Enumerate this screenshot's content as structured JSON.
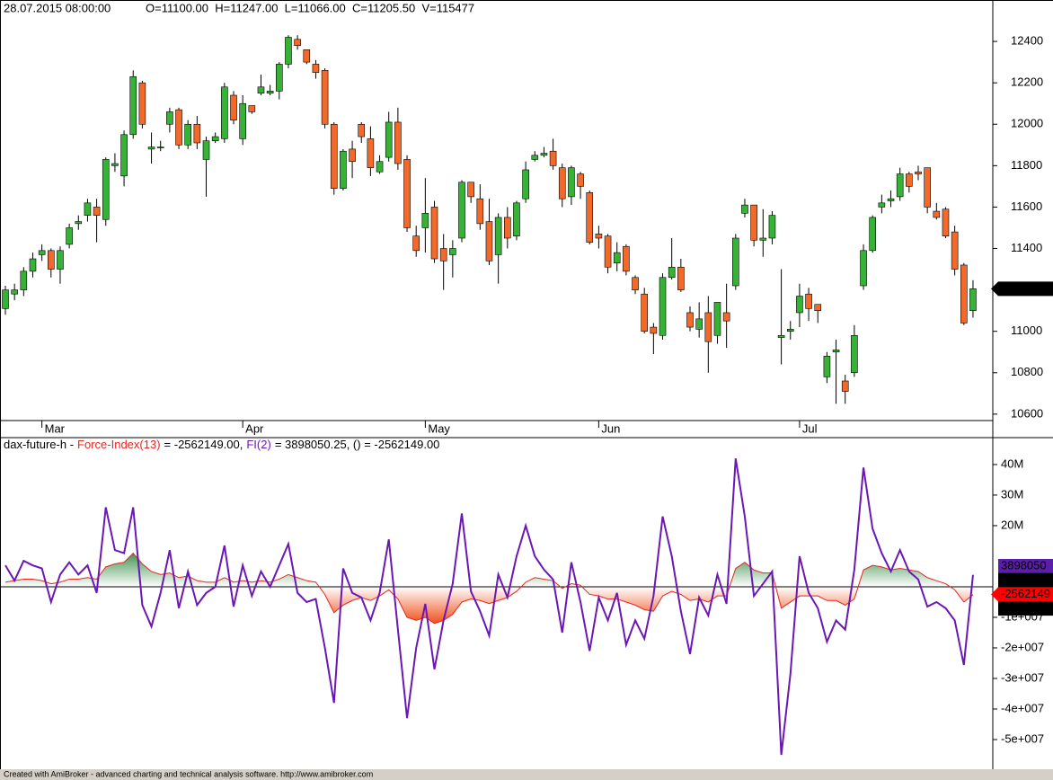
{
  "chart_data": [
    {
      "type": "candlestick",
      "info_date": "28.07.2015 08:00:00",
      "info_quote": "O=11100.00  H=11247.00  L=11066.00  C=11205.50  V=115477",
      "categories": [
        null,
        null,
        null,
        null,
        "Mar",
        null,
        null,
        null,
        null,
        null,
        null,
        null,
        null,
        null,
        null,
        null,
        null,
        null,
        null,
        null,
        null,
        null,
        null,
        null,
        null,
        null,
        "Apr",
        null,
        null,
        null,
        null,
        null,
        null,
        null,
        null,
        null,
        null,
        null,
        null,
        null,
        null,
        null,
        null,
        null,
        null,
        null,
        "May",
        null,
        null,
        null,
        null,
        null,
        null,
        null,
        null,
        null,
        null,
        null,
        null,
        null,
        null,
        null,
        null,
        null,
        null,
        "Jun",
        null,
        null,
        null,
        null,
        null,
        null,
        null,
        null,
        null,
        null,
        null,
        null,
        null,
        null,
        null,
        null,
        null,
        null,
        null,
        null,
        null,
        "Jul",
        null,
        null,
        null,
        null,
        null,
        null,
        null,
        null,
        null,
        null,
        null,
        null,
        null,
        null,
        null,
        null,
        null,
        null,
        null
      ],
      "open": [
        11110,
        11180,
        11200,
        11290,
        11370,
        11390,
        11300,
        11420,
        11520,
        11560,
        11600,
        11540,
        11800,
        11750,
        11950,
        12200,
        11880,
        11890,
        12000,
        12070,
        11900,
        12000,
        11830,
        11920,
        11930,
        12140,
        11930,
        12090,
        12150,
        12150,
        12160,
        12290,
        12410,
        12360,
        12290,
        12260,
        12000,
        11690,
        11880,
        12000,
        11930,
        11770,
        11840,
        12010,
        11830,
        11460,
        11500,
        11600,
        11400,
        11370,
        11450,
        11720,
        11640,
        11530,
        11370,
        11550,
        11460,
        11640,
        11830,
        11850,
        11870,
        11790,
        11650,
        11760,
        11670,
        11470,
        11460,
        11330,
        11410,
        11260,
        11180,
        11020,
        10980,
        11260,
        11310,
        11090,
        11010,
        11090,
        10980,
        11090,
        11220,
        11570,
        11610,
        11440,
        11450,
        10970,
        11000,
        11090,
        11180,
        11130,
        10780,
        10900,
        10760,
        10800,
        11220,
        11390,
        11600,
        11630,
        11650,
        11760,
        11770,
        11790,
        11580,
        11590,
        11480,
        11320,
        11100
      ],
      "high": [
        11220,
        11230,
        11310,
        11380,
        11420,
        11400,
        11410,
        11520,
        11560,
        11640,
        11640,
        11840,
        11860,
        11970,
        12260,
        12210,
        11960,
        11920,
        12080,
        12080,
        12020,
        12040,
        11940,
        11960,
        12200,
        12160,
        12140,
        12090,
        12240,
        12190,
        12300,
        12430,
        12430,
        12350,
        12310,
        12270,
        12010,
        11880,
        11920,
        12010,
        11990,
        11850,
        12060,
        12080,
        11850,
        11510,
        11740,
        11630,
        11470,
        11440,
        11730,
        11720,
        11710,
        11640,
        11570,
        11600,
        11630,
        11820,
        11870,
        11890,
        11930,
        11810,
        11800,
        11770,
        11680,
        11510,
        11470,
        11430,
        11420,
        11270,
        11210,
        11040,
        11280,
        11450,
        11350,
        11120,
        11140,
        11170,
        11140,
        11230,
        11470,
        11640,
        11610,
        11590,
        11580,
        11300,
        11050,
        11230,
        11210,
        11120,
        10900,
        10960,
        10790,
        11030,
        11420,
        11560,
        11660,
        11680,
        11790,
        11770,
        11800,
        11790,
        11620,
        11600,
        11510,
        11330,
        11247
      ],
      "low": [
        11080,
        11150,
        11170,
        11260,
        11340,
        11260,
        11230,
        11400,
        11490,
        11530,
        11430,
        11510,
        11770,
        11700,
        11930,
        11980,
        11810,
        11870,
        11960,
        11880,
        11880,
        11880,
        11650,
        11910,
        11910,
        12000,
        11900,
        12050,
        12140,
        12140,
        12120,
        12270,
        12360,
        12290,
        12220,
        11980,
        11660,
        11680,
        11740,
        11910,
        11750,
        11760,
        11820,
        11780,
        11480,
        11360,
        11380,
        11330,
        11200,
        11260,
        11430,
        11620,
        11490,
        11320,
        11230,
        11400,
        11440,
        11620,
        11820,
        11840,
        11780,
        11600,
        11610,
        11640,
        11420,
        11400,
        11280,
        11290,
        11270,
        11180,
        10990,
        10890,
        10960,
        11250,
        11190,
        11000,
        10970,
        10800,
        10940,
        10920,
        11200,
        11550,
        11410,
        11360,
        11420,
        10840,
        10960,
        11020,
        11050,
        11040,
        10750,
        10650,
        10650,
        10780,
        11200,
        11380,
        11570,
        11600,
        11630,
        11670,
        11730,
        11570,
        11540,
        11450,
        11270,
        11030,
        11066
      ],
      "close": [
        11200,
        11200,
        11290,
        11350,
        11390,
        11300,
        11390,
        11500,
        11530,
        11620,
        11560,
        11830,
        11810,
        11950,
        12230,
        12000,
        11890,
        11890,
        12060,
        11900,
        12000,
        11910,
        11920,
        11940,
        12180,
        12020,
        12100,
        12060,
        12180,
        12160,
        12290,
        12420,
        12380,
        12300,
        12250,
        12000,
        11690,
        11870,
        11820,
        11940,
        11790,
        11820,
        12010,
        11810,
        11500,
        11390,
        11570,
        11350,
        11340,
        11400,
        11720,
        11650,
        11520,
        11340,
        11550,
        11450,
        11620,
        11780,
        11850,
        11860,
        11800,
        11640,
        11790,
        11700,
        11430,
        11450,
        11310,
        11380,
        11290,
        11200,
        11000,
        10990,
        11260,
        11310,
        11200,
        11020,
        11060,
        10950,
        11140,
        11050,
        11450,
        11610,
        11440,
        11450,
        11560,
        10980,
        11010,
        11170,
        11110,
        11100,
        10880,
        10910,
        10710,
        10980,
        11390,
        11550,
        11620,
        11640,
        11760,
        11700,
        11760,
        11600,
        11550,
        11460,
        11300,
        11040,
        11205.5
      ],
      "up_color": "#36b336",
      "down_color": "#f2692a",
      "ylim": [
        10569,
        12600
      ],
      "yticks": [
        10600,
        10800,
        11000,
        11200,
        11400,
        11600,
        11800,
        12000,
        12200,
        12400
      ]
    },
    {
      "type": "force-index",
      "title": "dax-future-h -",
      "series": [
        {
          "name": "Force-Index(13)",
          "color": "#e8261f",
          "readout": "= -2562149.00,",
          "values": [
            1500000,
            2000000,
            2500000,
            2500000,
            2000000,
            1000000,
            1500000,
            2500000,
            2500000,
            3000000,
            2500000,
            6500000,
            7500000,
            8000000,
            11000000,
            7500000,
            5000000,
            4000000,
            4500000,
            3000000,
            3500000,
            2000000,
            1500000,
            1500000,
            3000000,
            1500000,
            2000000,
            1500000,
            2000000,
            1500000,
            2500000,
            4000000,
            3000000,
            2000000,
            1500000,
            -2500000,
            -8500000,
            -6000000,
            -4500000,
            -3500000,
            -4500000,
            -3000000,
            -1000000,
            -4000000,
            -10000000,
            -11000000,
            -10000000,
            -12000000,
            -11000000,
            -9000000,
            -5000000,
            -4000000,
            -4500000,
            -5500000,
            -4500000,
            -3500000,
            -1500000,
            1500000,
            3000000,
            2500000,
            2000000,
            -500000,
            1000000,
            500000,
            -2500000,
            -3000000,
            -4000000,
            -4000000,
            -5000000,
            -6000000,
            -7500000,
            -8000000,
            -3000000,
            -1500000,
            -2500000,
            -4500000,
            -4000000,
            -5000000,
            -3000000,
            -3000000,
            6000000,
            8000000,
            5500000,
            4500000,
            4500000,
            -7000000,
            -5000000,
            -3000000,
            -3000000,
            -3000000,
            -4500000,
            -4500000,
            -6000000,
            -4000000,
            5500000,
            7000000,
            6500000,
            5500000,
            6000000,
            5500000,
            5000000,
            3000000,
            2000000,
            1000000,
            -1000000,
            -5000000,
            -2562149
          ]
        },
        {
          "name": "FI(2)",
          "color": "#6a17b5",
          "readout": "= 3898050.25, () = -2562149.00",
          "values": [
            7000000,
            2000000,
            8500000,
            7000000,
            6000000,
            -5000000,
            4000000,
            8000000,
            4000000,
            7000000,
            -2000000,
            26000000,
            12000000,
            11000000,
            26000000,
            -6000000,
            -13000000,
            -2000000,
            12000000,
            -7000000,
            5000000,
            -6000000,
            -2000000,
            0,
            13500000,
            -6500000,
            7000000,
            -3000000,
            5000000,
            0,
            7000000,
            14000000,
            -2000000,
            -5000000,
            -4000000,
            -20000000,
            -38000000,
            6000000,
            -2000000,
            -3500000,
            -11000000,
            -2000000,
            15500000,
            -14000000,
            -43000000,
            -20000000,
            -5600000,
            -27000000,
            -11000000,
            1000000,
            24000000,
            -1500000,
            -8000000,
            -16000000,
            4000000,
            -3500000,
            10000000,
            20000000,
            10000000,
            5600000,
            2400000,
            -15000000,
            8000000,
            -5000000,
            -21000000,
            -3500000,
            -11000000,
            -2000000,
            -19000000,
            -11000000,
            -17000000,
            -3000000,
            23000000,
            10000000,
            -8000000,
            -22000000,
            -3500000,
            -9400000,
            4000000,
            -5600000,
            42000000,
            23000000,
            -3000000,
            1000000,
            5000000,
            -55000000,
            -28500000,
            10000000,
            -2000000,
            -7000000,
            -18000000,
            -11000000,
            -14000000,
            5600000,
            39000000,
            19000000,
            11000000,
            5000000,
            12000000,
            5000000,
            2400000,
            -6500000,
            -5000000,
            -7000000,
            -11000000,
            -25600000,
            3898050.25
          ]
        }
      ],
      "area_colors": [
        "#2f8a3e",
        "#f0501a"
      ],
      "ylim": [
        -59700000,
        48800000
      ],
      "yticks": [
        {
          "value": 40000000,
          "label": "40M"
        },
        {
          "value": 30000000,
          "label": "30M"
        },
        {
          "value": 20000000,
          "label": "20M"
        },
        {
          "value": -10000000,
          "label": "-1e+007"
        },
        {
          "value": -20000000,
          "label": "-2e+007"
        },
        {
          "value": -30000000,
          "label": "-3e+007"
        },
        {
          "value": -40000000,
          "label": "-4e+007"
        },
        {
          "value": -50000000,
          "label": "-5e+007"
        }
      ],
      "tags": [
        {
          "label": "3898050",
          "color": "#5a1ea8"
        },
        {
          "label": "0.00000",
          "color": "#000000"
        },
        {
          "label": "-2562149",
          "color": "#ff0000"
        },
        {
          "label": "-2562149",
          "color": "#000000"
        }
      ]
    }
  ],
  "footer": "Created with AmiBroker - advanced charting and technical analysis software. http://www.amibroker.com"
}
